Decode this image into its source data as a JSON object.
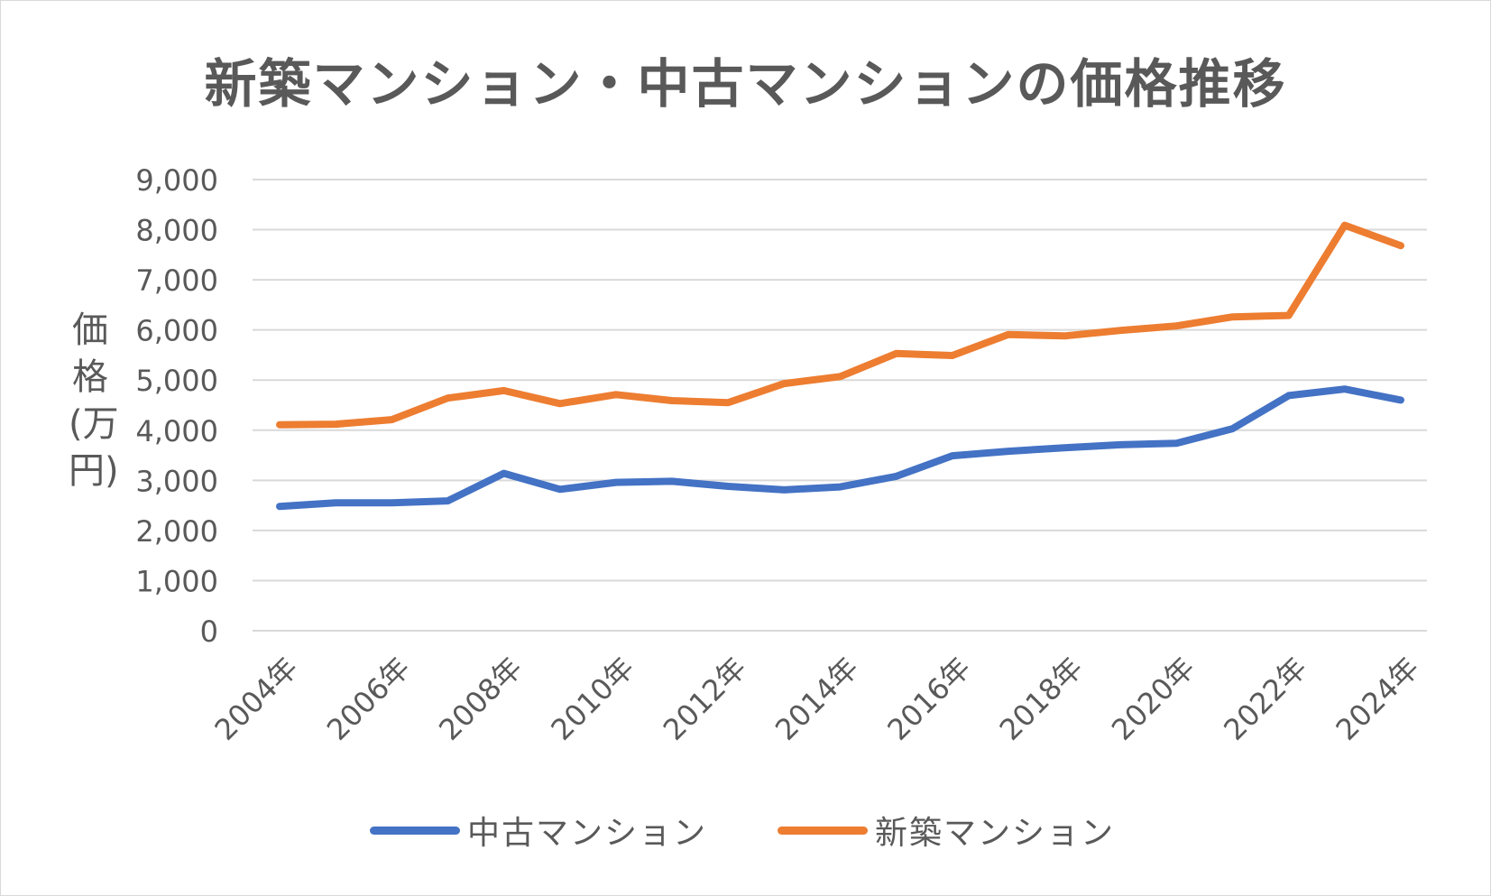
{
  "title": "新築マンション・中古マンションの価格推移",
  "ylabel": [
    "価",
    "格",
    "(万",
    "円)"
  ],
  "ytick_labels": [
    "0",
    "1,000",
    "2,000",
    "3,000",
    "4,000",
    "5,000",
    "6,000",
    "7,000",
    "8,000",
    "9,000"
  ],
  "chart_data": {
    "type": "line",
    "title": "新築マンション・中古マンションの価格推移",
    "ylabel": "価格(万円)",
    "xlabel": "",
    "ylim": [
      0,
      9000
    ],
    "ytick_step": 1000,
    "grid": true,
    "legend_position": "bottom",
    "x": [
      "2004年",
      "2005年",
      "2006年",
      "2007年",
      "2008年",
      "2009年",
      "2010年",
      "2011年",
      "2012年",
      "2013年",
      "2014年",
      "2015年",
      "2016年",
      "2017年",
      "2018年",
      "2019年",
      "2020年",
      "2021年",
      "2022年",
      "2023年",
      "2024年"
    ],
    "x_tick_labels": [
      "2004年",
      "2006年",
      "2008年",
      "2010年",
      "2012年",
      "2014年",
      "2016年",
      "2018年",
      "2020年",
      "2022年",
      "2024年"
    ],
    "series": [
      {
        "name": "中古マンション",
        "color": "#4472c4",
        "values": [
          2480,
          2550,
          2550,
          2590,
          3140,
          2820,
          2960,
          2980,
          2880,
          2810,
          2870,
          3080,
          3490,
          3580,
          3650,
          3710,
          3740,
          4030,
          4690,
          4820,
          4600
        ]
      },
      {
        "name": "新築マンション",
        "color": "#ed7d31",
        "values": [
          4110,
          4120,
          4210,
          4640,
          4790,
          4530,
          4710,
          4590,
          4550,
          4930,
          5070,
          5530,
          5490,
          5910,
          5880,
          5990,
          6080,
          6260,
          6290,
          8090,
          7680
        ]
      }
    ]
  }
}
